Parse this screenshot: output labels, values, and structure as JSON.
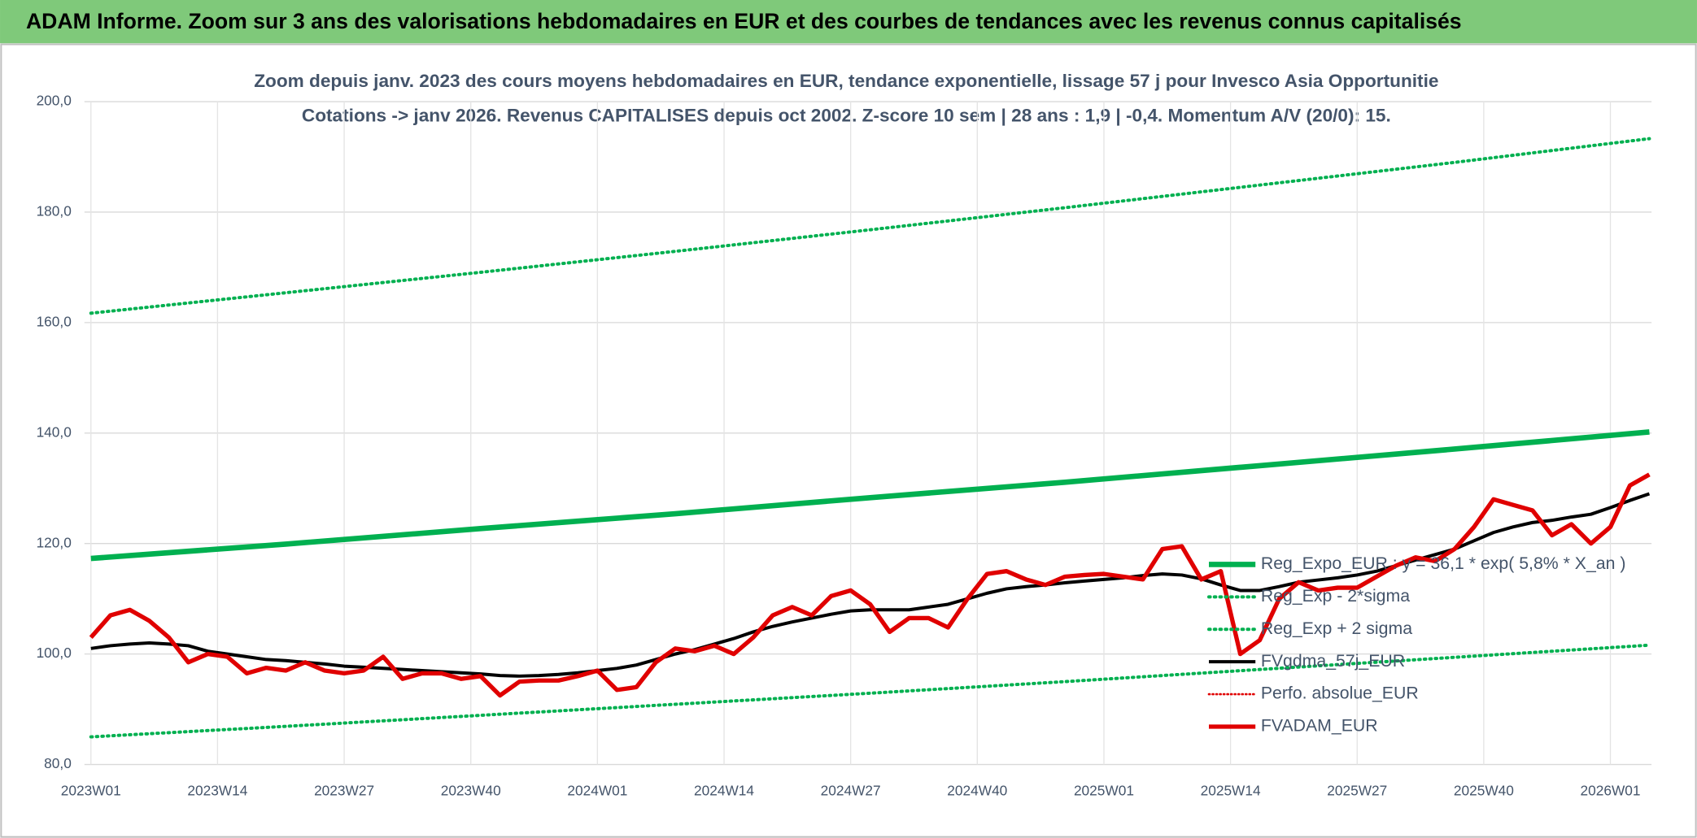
{
  "header": {
    "title": "ADAM Informe. Zoom sur 3 ans des valorisations hebdomadaires en EUR et des courbes de tendances avec les revenus connus capitalisés"
  },
  "chart_data": {
    "type": "line",
    "title": "Zoom depuis janv. 2023 des cours moyens hebdomadaires en EUR, tendance exponentielle, lissage 57 j pour Invesco Asia Opportunitie",
    "subtitle": "Cotations -> janv 2026. Revenus CAPITALISES depuis oct 2002. Z-score 10 sem | 28 ans : 1,9 | -0,4. Momentum A/V (20/0): 15.",
    "xlim": [
      0,
      160
    ],
    "xticks": [
      {
        "value": 0,
        "label": "2023W01"
      },
      {
        "value": 13,
        "label": "2023W14"
      },
      {
        "value": 26,
        "label": "2023W27"
      },
      {
        "value": 39,
        "label": "2023W40"
      },
      {
        "value": 52,
        "label": "2024W01"
      },
      {
        "value": 65,
        "label": "2024W14"
      },
      {
        "value": 78,
        "label": "2024W27"
      },
      {
        "value": 91,
        "label": "2024W40"
      },
      {
        "value": 104,
        "label": "2025W01"
      },
      {
        "value": 117,
        "label": "2025W14"
      },
      {
        "value": 130,
        "label": "2025W27"
      },
      {
        "value": 143,
        "label": "2025W40"
      },
      {
        "value": 156,
        "label": "2026W01"
      }
    ],
    "ylim": [
      80,
      200
    ],
    "yticks": [
      {
        "value": 80,
        "label": "80,0"
      },
      {
        "value": 100,
        "label": "100,0"
      },
      {
        "value": 120,
        "label": "120,0"
      },
      {
        "value": 140,
        "label": "140,0"
      },
      {
        "value": 160,
        "label": "160,0"
      },
      {
        "value": 180,
        "label": "180,0"
      },
      {
        "value": 200,
        "label": "200,0"
      }
    ],
    "grid": true,
    "legend": "right",
    "x": [
      0,
      2,
      4,
      6,
      8,
      10,
      12,
      14,
      16,
      18,
      20,
      22,
      24,
      26,
      28,
      30,
      32,
      34,
      36,
      38,
      40,
      42,
      44,
      46,
      48,
      50,
      52,
      54,
      56,
      58,
      60,
      62,
      64,
      66,
      68,
      70,
      72,
      74,
      76,
      78,
      80,
      82,
      84,
      86,
      88,
      90,
      92,
      94,
      96,
      98,
      100,
      102,
      104,
      106,
      108,
      110,
      112,
      114,
      116,
      118,
      120,
      122,
      124,
      126,
      128,
      130,
      132,
      134,
      136,
      138,
      140,
      142,
      144,
      146,
      148,
      150,
      152,
      154,
      156,
      158,
      160
    ],
    "series": [
      {
        "name": "Reg_Expo_EUR : y = 36,1 * exp( 5,8% *  X_an )",
        "color": "#00b050",
        "line_width": 5,
        "line_style": "solid",
        "x": [
          0,
          20,
          40,
          60,
          80,
          100,
          120,
          140,
          160
        ],
        "values": [
          117.3,
          119.9,
          122.7,
          125.4,
          128.3,
          131.1,
          134.1,
          137.1,
          140.2
        ]
      },
      {
        "name": "Reg_Exp - 2*sigma",
        "color": "#00b050",
        "line_width": 3,
        "line_style": "dotted",
        "x": [
          0,
          20,
          40,
          60,
          80,
          100,
          120,
          140,
          160
        ],
        "values": [
          85.0,
          86.9,
          88.9,
          90.9,
          92.9,
          95.0,
          97.2,
          99.4,
          101.6
        ]
      },
      {
        "name": "Reg_Exp + 2 sigma",
        "color": "#00b050",
        "line_width": 3,
        "line_style": "dotted",
        "x": [
          0,
          20,
          40,
          60,
          80,
          100,
          120,
          140,
          160
        ],
        "values": [
          161.7,
          165.4,
          169.1,
          172.9,
          176.8,
          180.8,
          184.9,
          189.0,
          193.3
        ]
      },
      {
        "name": "FVgdma_57j_EUR",
        "color": "#000000",
        "line_width": 3,
        "line_style": "solid",
        "values": [
          101,
          101.5,
          101.8,
          102,
          101.8,
          101.5,
          100.5,
          100,
          99.5,
          99,
          98.8,
          98.5,
          98.2,
          97.8,
          97.6,
          97.4,
          97.2,
          97,
          96.8,
          96.6,
          96.4,
          96.1,
          96,
          96.1,
          96.3,
          96.6,
          97,
          97.4,
          98,
          99,
          100,
          100.8,
          101.8,
          102.8,
          104,
          105,
          105.8,
          106.5,
          107.2,
          107.8,
          108,
          108,
          108,
          108.5,
          109,
          110,
          111,
          111.8,
          112.2,
          112.5,
          112.9,
          113.2,
          113.5,
          113.8,
          114.2,
          114.5,
          114.3,
          113.6,
          112.5,
          111.5,
          111.5,
          112.2,
          113,
          113.4,
          113.8,
          114.3,
          115,
          116,
          117,
          118,
          119,
          120.5,
          122,
          123,
          123.8,
          124.2,
          124.8,
          125.3,
          126.5,
          127.8,
          129
        ]
      },
      {
        "name": "Perfo. absolue_EUR",
        "color": "#e00000",
        "line_width": 2,
        "line_style": "dotted",
        "x": [],
        "values": []
      },
      {
        "name": "FVADAM_EUR",
        "color": "#e00000",
        "line_width": 4,
        "line_style": "solid",
        "values": [
          103,
          107,
          108,
          106,
          103,
          98.5,
          100,
          99.5,
          96.5,
          97.5,
          97,
          98.5,
          97,
          96.5,
          97,
          99.5,
          95.5,
          96.5,
          96.5,
          95.5,
          96,
          92.5,
          95,
          95.2,
          95.2,
          96,
          97,
          93.5,
          94,
          98.5,
          101,
          100.5,
          101.5,
          100,
          103,
          107,
          108.5,
          107,
          110.5,
          111.5,
          109,
          104,
          106.5,
          106.5,
          104.8,
          110,
          114.5,
          115,
          113.5,
          112.5,
          114,
          114.3,
          114.5,
          114,
          113.5,
          119,
          119.5,
          113.5,
          115,
          100,
          102.5,
          110,
          113,
          111.5,
          112,
          112,
          114,
          116,
          117.5,
          116.8,
          119,
          123,
          128,
          127,
          126,
          121.5,
          123.5,
          120,
          123,
          130.5,
          132.5
        ]
      }
    ]
  }
}
